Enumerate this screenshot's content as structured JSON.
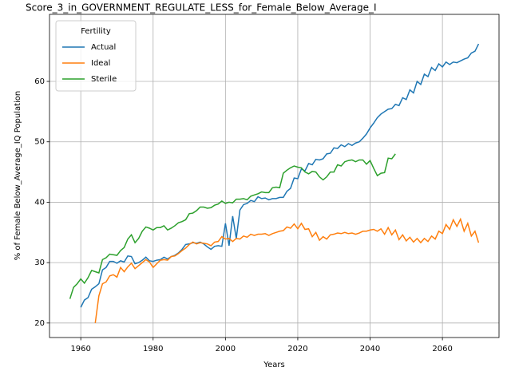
{
  "chart_data": {
    "type": "line",
    "title": "Score_3_in_GOVERNMENT_REGULATE_LESS_for_Female_Below_Average_I",
    "xlabel": "Years",
    "ylabel": "% of Female Below_Average_IQ Population",
    "x": [
      1957,
      1958,
      1959,
      1960,
      1961,
      1962,
      1963,
      1964,
      1965,
      1966,
      1967,
      1968,
      1969,
      1970,
      1971,
      1972,
      1973,
      1974,
      1975,
      1976,
      1977,
      1978,
      1979,
      1980,
      1981,
      1982,
      1983,
      1984,
      1985,
      1986,
      1987,
      1988,
      1989,
      1990,
      1991,
      1992,
      1993,
      1994,
      1995,
      1996,
      1997,
      1998,
      1999,
      2000,
      2001,
      2002,
      2003,
      2004,
      2005,
      2006,
      2007,
      2008,
      2009,
      2010,
      2011,
      2012,
      2013,
      2014,
      2015,
      2016,
      2017,
      2018,
      2019,
      2020,
      2021,
      2022,
      2023,
      2024,
      2025,
      2026,
      2027,
      2028,
      2029,
      2030,
      2031,
      2032,
      2033,
      2034,
      2035,
      2036,
      2037,
      2038,
      2039,
      2040,
      2041,
      2042,
      2043,
      2044,
      2045,
      2046,
      2047,
      2048,
      2049,
      2050,
      2051,
      2052,
      2053,
      2054,
      2055,
      2056,
      2057,
      2058,
      2059,
      2060,
      2061,
      2062,
      2063,
      2064,
      2065,
      2066,
      2067,
      2068,
      2069,
      2070
    ],
    "series": [
      {
        "name": "Actual",
        "color": "#1f77b4",
        "values": [
          null,
          null,
          null,
          22.6,
          23.8,
          24.2,
          25.6,
          26,
          26.5,
          28.8,
          29.2,
          30.2,
          30.2,
          29.9,
          30.3,
          30.1,
          31.1,
          31,
          29.8,
          30,
          30.4,
          30.9,
          30.3,
          30.2,
          30.4,
          30.5,
          30.9,
          30.6,
          31,
          31.2,
          31.6,
          32.2,
          33,
          33.1,
          33.3,
          33.2,
          33.4,
          33.1,
          32.6,
          32.2,
          32.7,
          32.8,
          32.7,
          36.5,
          32.8,
          37.7,
          34,
          38.7,
          39.6,
          39.8,
          40.3,
          40.1,
          40.9,
          40.6,
          40.7,
          40.4,
          40.6,
          40.6,
          40.8,
          40.8,
          41.8,
          42.3,
          44,
          43.9,
          45.5,
          45.2,
          46.4,
          46.2,
          47.1,
          47,
          47.2,
          48,
          48.1,
          49,
          48.9,
          49.5,
          49.2,
          49.7,
          49.4,
          49.8,
          50,
          50.6,
          51.3,
          52.3,
          53.1,
          54,
          54.6,
          55,
          55.4,
          55.5,
          56.2,
          56,
          57.3,
          57,
          58.6,
          58.1,
          60,
          59.5,
          61.2,
          60.8,
          62.3,
          61.8,
          62.9,
          62.4,
          63.2,
          62.8,
          63.2,
          63.1,
          63.4,
          63.7,
          63.9,
          64.7,
          65,
          66.2
        ]
      },
      {
        "name": "Ideal",
        "color": "#ff7f0e",
        "values": [
          null,
          null,
          null,
          null,
          null,
          null,
          null,
          20,
          24.5,
          26.5,
          26.8,
          27.8,
          28,
          27.6,
          29.2,
          28.5,
          29.3,
          29.9,
          29,
          29.5,
          30,
          30.5,
          30.1,
          29.2,
          29.8,
          30.4,
          30.5,
          30.4,
          31,
          31.1,
          31.5,
          32,
          32.4,
          33,
          33.4,
          33.1,
          33.3,
          33.2,
          33.1,
          32.8,
          33.4,
          33.5,
          34.3,
          33.9,
          34,
          33.5,
          34,
          33.9,
          34.4,
          34.2,
          34.7,
          34.5,
          34.7,
          34.7,
          34.8,
          34.5,
          34.8,
          35,
          35.2,
          35.3,
          35.9,
          35.7,
          36.4,
          35.6,
          36.5,
          35.5,
          35.6,
          34.3,
          35,
          33.7,
          34.3,
          33.9,
          34.6,
          34.7,
          34.9,
          34.8,
          35,
          34.8,
          34.9,
          34.7,
          34.9,
          35.2,
          35.2,
          35.4,
          35.5,
          35.2,
          35.6,
          34.7,
          35.8,
          34.6,
          35.4,
          33.8,
          34.6,
          33.6,
          34.2,
          33.4,
          34,
          33.3,
          34,
          33.5,
          34.4,
          33.9,
          35.2,
          34.8,
          36.3,
          35.5,
          37.1,
          36,
          37.2,
          35.2,
          36.5,
          34.4,
          35.2,
          33.3
        ]
      },
      {
        "name": "Sterile",
        "color": "#2ca02c",
        "values": [
          24,
          25.9,
          26.5,
          27.3,
          26.6,
          27.5,
          28.7,
          28.5,
          28.3,
          30.5,
          30.8,
          31.4,
          31.3,
          31.2,
          32,
          32.5,
          33.9,
          34.6,
          33.3,
          34,
          35.2,
          35.9,
          35.7,
          35.4,
          35.8,
          35.8,
          36.1,
          35.4,
          35.7,
          36.1,
          36.6,
          36.8,
          37.1,
          38.1,
          38.2,
          38.6,
          39.2,
          39.2,
          39,
          39.1,
          39.5,
          39.7,
          40.2,
          39.8,
          40,
          39.9,
          40.5,
          40.5,
          40.6,
          40.4,
          41,
          41.2,
          41.4,
          41.7,
          41.6,
          41.6,
          42.4,
          42.5,
          42.4,
          44.8,
          45.3,
          45.7,
          46,
          45.8,
          45.7,
          45,
          44.7,
          45.1,
          45,
          44.2,
          43.7,
          44.2,
          45,
          45,
          46.2,
          46,
          46.7,
          46.9,
          47,
          46.7,
          47,
          47,
          46.3,
          46.9,
          45.6,
          44.4,
          44.8,
          44.9,
          47.3,
          47.2,
          48,
          null,
          null,
          null,
          null,
          null,
          null,
          null,
          null,
          null,
          null,
          null,
          null,
          null,
          null,
          null,
          null,
          null,
          null,
          null,
          null,
          null,
          null,
          null
        ]
      }
    ],
    "xlim": [
      1951.35,
      2075.65
    ],
    "xticks": [
      1960,
      1980,
      2000,
      2020,
      2040,
      2060
    ],
    "ylim": [
      17.6,
      71.1
    ],
    "yticks": [
      20,
      30,
      40,
      50,
      60
    ],
    "grid": true,
    "legend": {
      "title": "Fertility",
      "loc": "upper left"
    }
  }
}
